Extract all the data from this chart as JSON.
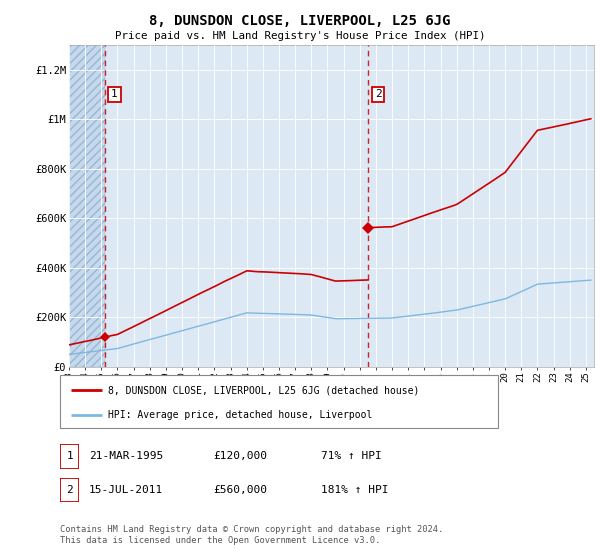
{
  "title": "8, DUNSDON CLOSE, LIVERPOOL, L25 6JG",
  "subtitle": "Price paid vs. HM Land Registry's House Price Index (HPI)",
  "ylim": [
    0,
    1300000
  ],
  "yticks": [
    0,
    200000,
    400000,
    600000,
    800000,
    1000000,
    1200000
  ],
  "ytick_labels": [
    "£0",
    "£200K",
    "£400K",
    "£600K",
    "£800K",
    "£1M",
    "£1.2M"
  ],
  "hpi_color": "#7db8e0",
  "price_color": "#cc0000",
  "bg_color": "#dce9f5",
  "hatch_bg_color": "#c5d9ee",
  "annotation1_date": "21-MAR-1995",
  "annotation1_price": 120000,
  "annotation1_year": 1995.22,
  "annotation1_label": "£120,000",
  "annotation1_pct": "71% ↑ HPI",
  "annotation2_date": "15-JUL-2011",
  "annotation2_price": 560000,
  "annotation2_year": 2011.54,
  "annotation2_label": "£560,000",
  "annotation2_pct": "181% ↑ HPI",
  "legend_line1": "8, DUNSDON CLOSE, LIVERPOOL, L25 6JG (detached house)",
  "legend_line2": "HPI: Average price, detached house, Liverpool",
  "footer": "Contains HM Land Registry data © Crown copyright and database right 2024.\nThis data is licensed under the Open Government Licence v3.0.",
  "xmin": 1993,
  "xmax": 2025.5
}
